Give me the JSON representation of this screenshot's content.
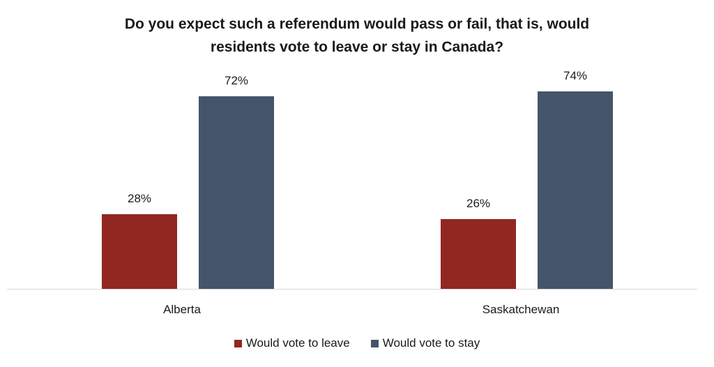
{
  "chart_data": {
    "type": "bar",
    "title": "Do you expect such a referendum would pass or fail, that is, would residents vote to leave or stay in Canada?",
    "title_lines": [
      "Do you expect such a referendum would pass or fail, that is, would",
      "residents vote to leave or stay in Canada?"
    ],
    "categories": [
      "Alberta",
      "Saskatchewan"
    ],
    "series": [
      {
        "name": "Would vote to leave",
        "values": [
          28,
          26
        ],
        "labels": [
          "28%",
          "26%"
        ],
        "color": "#922722"
      },
      {
        "name": "Would vote to stay",
        "values": [
          72,
          74
        ],
        "labels": [
          "72%",
          "74%"
        ],
        "color": "#44546a"
      }
    ],
    "xlabel": "",
    "ylabel": "",
    "ylim": [
      0,
      80
    ],
    "grid": false,
    "legend_position": "bottom"
  }
}
